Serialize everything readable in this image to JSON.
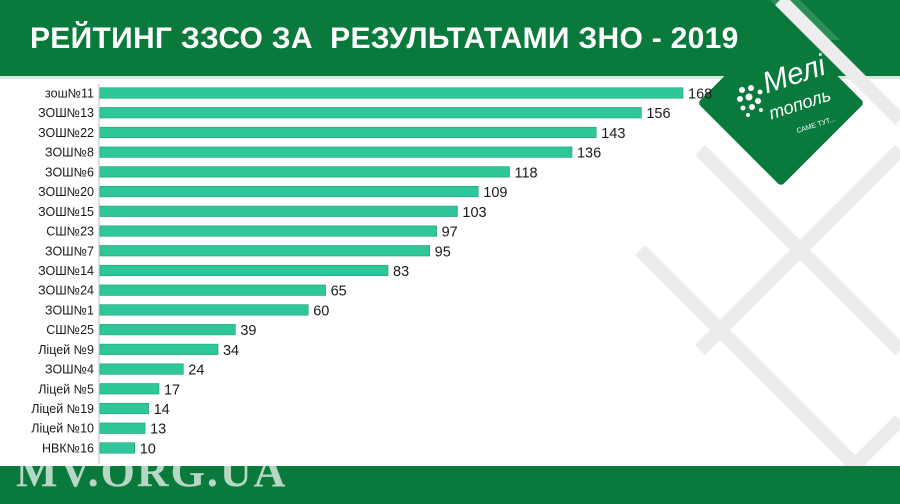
{
  "title": "РЕЙТИНГ ЗЗСО ЗА  РЕЗУЛЬТАТАМИ ЗНО - 2019",
  "watermark": "MV.ORG.UA",
  "logo": {
    "line1": "Мелі",
    "line2": "тополь",
    "tagline": "САМЕ ТУТ..."
  },
  "colors": {
    "header": "#0a7a3c",
    "bar": "#2fc79a",
    "bar_edge": "#1a9e74"
  },
  "chart_data": {
    "type": "bar",
    "orientation": "horizontal",
    "categories": [
      "зош№11",
      "ЗОШ№13",
      "ЗОШ№22",
      "ЗОШ№8",
      "ЗОШ№6",
      "ЗОШ№20",
      "ЗОШ№15",
      "СШ№23",
      "ЗОШ№7",
      "ЗОШ№14",
      "ЗОШ№24",
      "ЗОШ№1",
      "СШ№25",
      "Ліцей №9",
      "ЗОШ№4",
      "Ліцей №5",
      "Ліцей №19",
      "Ліцей №10",
      "НВК№16"
    ],
    "values": [
      168,
      156,
      143,
      136,
      118,
      109,
      103,
      97,
      95,
      83,
      65,
      60,
      39,
      34,
      24,
      17,
      14,
      13,
      10
    ],
    "xlim": [
      0,
      168
    ],
    "data_labels": true,
    "grid": false
  }
}
